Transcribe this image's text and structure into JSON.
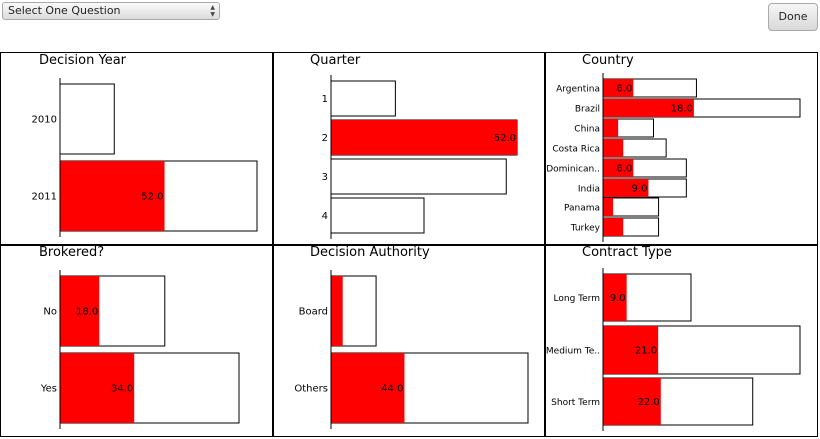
{
  "toolbar": {
    "question_select": "Select One Question",
    "done_label": "Done"
  },
  "colors": {
    "highlight": "#ff0000",
    "outline": "#000000",
    "background": "#ffffff"
  },
  "chart_data": [
    {
      "id": "decision-year",
      "type": "bar",
      "orientation": "horizontal",
      "title": "Decision Year",
      "categories": [
        "2010",
        "2011"
      ],
      "totals": [
        27,
        98
      ],
      "highlighted": [
        0,
        52
      ],
      "data_labels": [
        "",
        "52.0"
      ],
      "xlim": [
        0,
        98
      ]
    },
    {
      "id": "quarter",
      "type": "bar",
      "orientation": "horizontal",
      "title": "Quarter",
      "categories": [
        "1",
        "2",
        "3",
        "4"
      ],
      "totals": [
        18,
        52,
        49,
        26
      ],
      "highlighted": [
        0,
        52,
        0,
        0
      ],
      "data_labels": [
        "",
        "52.0",
        "",
        ""
      ],
      "xlim": [
        0,
        52
      ]
    },
    {
      "id": "country",
      "type": "bar",
      "orientation": "horizontal",
      "title": "Country",
      "categories": [
        "Argentina",
        "Brazil",
        "China",
        "Costa Rica",
        "Dominican..",
        "India",
        "Panama",
        "Turkey"
      ],
      "totals": [
        18.5,
        39,
        10,
        12.5,
        16.5,
        16.5,
        11,
        11
      ],
      "highlighted": [
        6,
        18,
        3,
        4,
        6,
        9,
        2,
        4
      ],
      "data_labels": [
        "6.0",
        "18.0",
        "",
        "",
        "6.0",
        "9.0",
        "",
        ""
      ],
      "xlim": [
        0,
        39
      ]
    },
    {
      "id": "brokered",
      "type": "bar",
      "orientation": "horizontal",
      "title": "Brokered?",
      "categories": [
        "No",
        "Yes"
      ],
      "totals": [
        48,
        82
      ],
      "highlighted": [
        18,
        34
      ],
      "data_labels": [
        "18.0",
        "34.0"
      ],
      "xlim": [
        0,
        82
      ]
    },
    {
      "id": "decision-authority",
      "type": "bar",
      "orientation": "horizontal",
      "title": "Decision Authority",
      "categories": [
        "Board",
        "Others"
      ],
      "totals": [
        27,
        118
      ],
      "highlighted": [
        7,
        44
      ],
      "data_labels": [
        "",
        "44.0"
      ],
      "xlim": [
        0,
        118
      ]
    },
    {
      "id": "contract-type",
      "type": "bar",
      "orientation": "horizontal",
      "title": "Contract Type",
      "categories": [
        "Long Term",
        "Medium Te..",
        "Short Term"
      ],
      "totals": [
        33.5,
        75,
        57
      ],
      "highlighted": [
        9,
        21,
        22
      ],
      "data_labels": [
        "9.0",
        "21.0",
        "22.0"
      ],
      "xlim": [
        0,
        75
      ]
    }
  ]
}
